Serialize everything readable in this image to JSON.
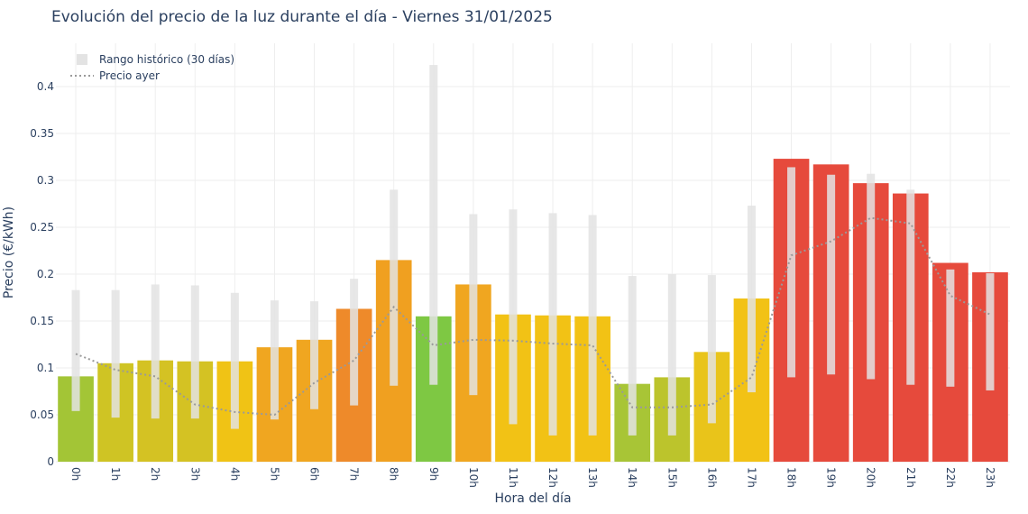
{
  "chart_data": {
    "type": "bar",
    "title": "Evolución del precio de la luz durante el día - Viernes 31/01/2025",
    "xlabel": "Hora del día",
    "ylabel": "Precio (€/kWh)",
    "ylim": [
      0,
      0.44
    ],
    "yticks": [
      "0",
      "0.05",
      "0.1",
      "0.15",
      "0.2",
      "0.25",
      "0.3",
      "0.35",
      "0.4"
    ],
    "ytick_values": [
      0,
      0.05,
      0.1,
      0.15,
      0.2,
      0.25,
      0.3,
      0.35,
      0.4
    ],
    "categories": [
      "0h",
      "1h",
      "2h",
      "3h",
      "4h",
      "5h",
      "6h",
      "7h",
      "8h",
      "9h",
      "10h",
      "11h",
      "12h",
      "13h",
      "14h",
      "15h",
      "16h",
      "17h",
      "18h",
      "19h",
      "20h",
      "21h",
      "22h",
      "23h"
    ],
    "grid": true,
    "legend_position": "top-left",
    "series": [
      {
        "name": "",
        "type": "bar",
        "values": [
          0.091,
          0.105,
          0.108,
          0.107,
          0.107,
          0.122,
          0.13,
          0.163,
          0.215,
          0.155,
          0.189,
          0.157,
          0.156,
          0.155,
          0.083,
          0.09,
          0.117,
          0.174,
          0.323,
          0.317,
          0.297,
          0.286,
          0.212,
          0.202
        ],
        "colors": [
          "#a3c536",
          "#cfc424",
          "#d4c223",
          "#d4c223",
          "#f0c315",
          "#f0a620",
          "#f0a620",
          "#ee8a2a",
          "#f0a020",
          "#7ec843",
          "#f0a620",
          "#f2c215",
          "#f2c215",
          "#f2c215",
          "#a8c536",
          "#bcc42c",
          "#e9c41a",
          "#f2c215",
          "#e64a3c",
          "#e64a3c",
          "#e64a3c",
          "#e64a3c",
          "#e64a3c",
          "#e64a3c"
        ]
      },
      {
        "name": "Rango histórico (30 días)",
        "type": "range",
        "low": [
          0.054,
          0.047,
          0.046,
          0.046,
          0.035,
          0.045,
          0.056,
          0.06,
          0.081,
          0.082,
          0.071,
          0.04,
          0.028,
          0.028,
          0.028,
          0.028,
          0.041,
          0.074,
          0.09,
          0.093,
          0.088,
          0.082,
          0.08,
          0.076
        ],
        "high": [
          0.183,
          0.183,
          0.189,
          0.188,
          0.18,
          0.172,
          0.171,
          0.195,
          0.29,
          0.423,
          0.264,
          0.269,
          0.265,
          0.263,
          0.198,
          0.2,
          0.199,
          0.273,
          0.314,
          0.306,
          0.307,
          0.29,
          0.205,
          0.201
        ],
        "color": "#e3e3e3"
      },
      {
        "name": "Precio ayer",
        "type": "line",
        "values": [
          0.115,
          0.098,
          0.091,
          0.061,
          0.053,
          0.05,
          0.084,
          0.108,
          0.165,
          0.124,
          0.13,
          0.129,
          0.126,
          0.124,
          0.058,
          0.058,
          0.061,
          0.09,
          0.22,
          0.235,
          0.26,
          0.254,
          0.177,
          0.157
        ],
        "color": "#9a9a9a",
        "dash": "dotted"
      }
    ]
  }
}
